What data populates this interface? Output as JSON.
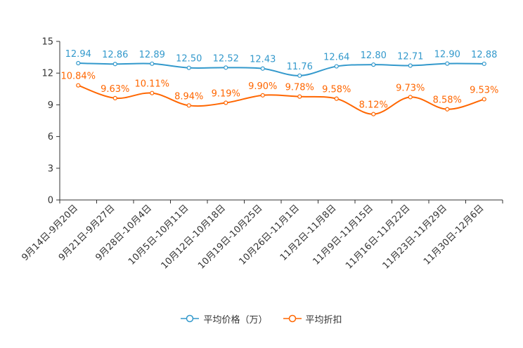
{
  "colors": {
    "price": "#3399cc",
    "discount": "#ff6600",
    "axis": "#333333",
    "text": "#333333"
  },
  "chart_data": {
    "type": "line",
    "title": "",
    "xlabel": "",
    "ylabel": "",
    "ylim": [
      0,
      15
    ],
    "yticks": [
      0,
      3,
      6,
      9,
      12,
      15
    ],
    "categories": [
      "9月14日-9月20日",
      "9月21日-9月27日",
      "9月28日-10月4日",
      "10月5日-10月11日",
      "10月12日-10月18日",
      "10月19日-10月25日",
      "10月26日-11月1日",
      "11月2日-11月8日",
      "11月9日-11月15日",
      "11月16日-11月22日",
      "11月23日-11月29日",
      "11月30日-12月6日"
    ],
    "series": [
      {
        "name": "平均价格（万）",
        "color": "#3399cc",
        "values": [
          12.94,
          12.86,
          12.89,
          12.5,
          12.52,
          12.43,
          11.76,
          12.64,
          12.8,
          12.71,
          12.9,
          12.88
        ],
        "labels": [
          "12.94",
          "12.86",
          "12.89",
          "12.50",
          "12.52",
          "12.43",
          "11.76",
          "12.64",
          "12.80",
          "12.71",
          "12.90",
          "12.88"
        ]
      },
      {
        "name": "平均折扣",
        "color": "#ff6600",
        "values": [
          10.84,
          9.63,
          10.11,
          8.94,
          9.19,
          9.9,
          9.78,
          9.58,
          8.12,
          9.73,
          8.58,
          9.53
        ],
        "labels": [
          "10.84%",
          "9.63%",
          "10.11%",
          "8.94%",
          "9.19%",
          "9.90%",
          "9.78%",
          "9.58%",
          "8.12%",
          "9.73%",
          "8.58%",
          "9.53%"
        ]
      }
    ],
    "legend_position": "bottom-center"
  }
}
